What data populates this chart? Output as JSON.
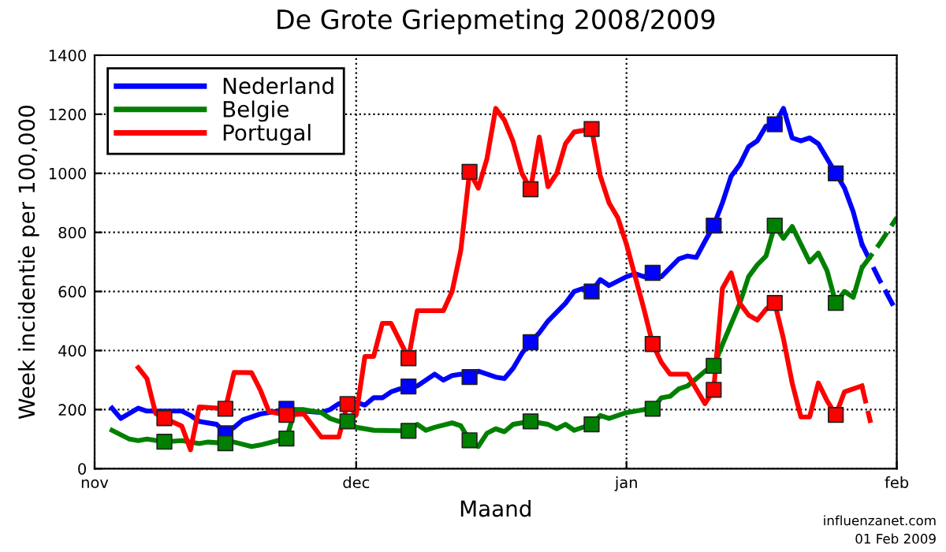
{
  "chart_data": {
    "type": "line",
    "title": "De Grote Griepmeting 2008/2009",
    "xlabel": "Maand",
    "ylabel": "Week incidentie per 100,000",
    "annotations": [
      "influenzanet.com",
      "01 Feb 2009"
    ],
    "xlim": [
      "2008-11-01",
      "2009-02-01"
    ],
    "xticks": [
      {
        "value": "2008-11-01",
        "label": "nov"
      },
      {
        "value": "2008-12-01",
        "label": "dec"
      },
      {
        "value": "2009-01-01",
        "label": "jan"
      },
      {
        "value": "2009-02-01",
        "label": "feb"
      }
    ],
    "ylim": [
      0,
      1400
    ],
    "yticks": [
      0,
      200,
      400,
      600,
      800,
      1000,
      1200,
      1400
    ],
    "grid": true,
    "legend": "top left",
    "series": [
      {
        "type": "line",
        "name": "Nederland",
        "color": "#0000ff",
        "line_style": "solid",
        "x": [
          "2008-11-03",
          "2008-11-04",
          "2008-11-06",
          "2008-11-07",
          "2008-11-09",
          "2008-11-11",
          "2008-11-12",
          "2008-11-13",
          "2008-11-15",
          "2008-11-16",
          "2008-11-17",
          "2008-11-18",
          "2008-11-20",
          "2008-11-22",
          "2008-11-23",
          "2008-11-25",
          "2008-11-27",
          "2008-11-28",
          "2008-11-29",
          "2008-11-30",
          "2008-12-01",
          "2008-12-02",
          "2008-12-03",
          "2008-12-04",
          "2008-12-05",
          "2008-12-06",
          "2008-12-07",
          "2008-12-08",
          "2008-12-09",
          "2008-12-10",
          "2008-12-11",
          "2008-12-12",
          "2008-12-13",
          "2008-12-14",
          "2008-12-15",
          "2008-12-16",
          "2008-12-17",
          "2008-12-18",
          "2008-12-19",
          "2008-12-20",
          "2008-12-21",
          "2008-12-22",
          "2008-12-23",
          "2008-12-24",
          "2008-12-25",
          "2008-12-26",
          "2008-12-27",
          "2008-12-28",
          "2008-12-29",
          "2008-12-30",
          "2009-01-01",
          "2009-01-02",
          "2009-01-03",
          "2009-01-04",
          "2009-01-05",
          "2009-01-06",
          "2009-01-07",
          "2009-01-08",
          "2009-01-09",
          "2009-01-10",
          "2009-01-11",
          "2009-01-12",
          "2009-01-13",
          "2009-01-14",
          "2009-01-15",
          "2009-01-16",
          "2009-01-17",
          "2009-01-18",
          "2009-01-19",
          "2009-01-20",
          "2009-01-21",
          "2009-01-22",
          "2009-01-23",
          "2009-01-24",
          "2009-01-25",
          "2009-01-26",
          "2009-01-27",
          "2009-01-28"
        ],
        "values": [
          205,
          170,
          205,
          195,
          195,
          195,
          180,
          160,
          150,
          120,
          140,
          165,
          185,
          195,
          203,
          195,
          190,
          200,
          220,
          225,
          225,
          215,
          240,
          240,
          260,
          270,
          278,
          280,
          300,
          320,
          300,
          315,
          320,
          310,
          330,
          320,
          310,
          305,
          340,
          390,
          428,
          460,
          500,
          530,
          560,
          600,
          610,
          600,
          640,
          620,
          650,
          660,
          650,
          663,
          650,
          680,
          710,
          720,
          715,
          770,
          823,
          900,
          990,
          1030,
          1090,
          1110,
          1160,
          1166,
          1220,
          1120,
          1110,
          1120,
          1100,
          1050,
          1000,
          950,
          870,
          760
        ]
      },
      {
        "type": "line",
        "color": "#0000ff",
        "line_style": "dashed",
        "x": [
          "2009-01-28",
          "2009-01-30",
          "2009-02-01"
        ],
        "values": [
          760,
          640,
          530
        ]
      },
      {
        "type": "line",
        "name": "Belgie",
        "color": "#008000",
        "line_style": "solid",
        "x": [
          "2008-11-03",
          "2008-11-05",
          "2008-11-06",
          "2008-11-07",
          "2008-11-09",
          "2008-11-11",
          "2008-11-13",
          "2008-11-14",
          "2008-11-16",
          "2008-11-17",
          "2008-11-19",
          "2008-11-20",
          "2008-11-22",
          "2008-11-23",
          "2008-11-24",
          "2008-11-25",
          "2008-11-27",
          "2008-11-28",
          "2008-11-29",
          "2008-11-30",
          "2008-12-01",
          "2008-12-03",
          "2008-12-07",
          "2008-12-08",
          "2008-12-09",
          "2008-12-10",
          "2008-12-12",
          "2008-12-13",
          "2008-12-14",
          "2008-12-15",
          "2008-12-16",
          "2008-12-17",
          "2008-12-18",
          "2008-12-19",
          "2008-12-21",
          "2008-12-23",
          "2008-12-24",
          "2008-12-25",
          "2008-12-26",
          "2008-12-28",
          "2008-12-29",
          "2008-12-30",
          "2009-01-01",
          "2009-01-03",
          "2009-01-04",
          "2009-01-05",
          "2009-01-06",
          "2009-01-07",
          "2009-01-08",
          "2009-01-09",
          "2009-01-10",
          "2009-01-11",
          "2009-01-12",
          "2009-01-13",
          "2009-01-14",
          "2009-01-15",
          "2009-01-16",
          "2009-01-17",
          "2009-01-18",
          "2009-01-19",
          "2009-01-20",
          "2009-01-21",
          "2009-01-22",
          "2009-01-23",
          "2009-01-24",
          "2009-01-25",
          "2009-01-26",
          "2009-01-27",
          "2009-01-28"
        ],
        "values": [
          130,
          100,
          95,
          100,
          91,
          95,
          85,
          90,
          86,
          90,
          75,
          80,
          95,
          102,
          200,
          200,
          190,
          170,
          160,
          160,
          140,
          130,
          128,
          150,
          130,
          140,
          155,
          145,
          96,
          75,
          120,
          135,
          125,
          150,
          160,
          150,
          135,
          150,
          130,
          150,
          180,
          170,
          190,
          200,
          203,
          240,
          245,
          270,
          280,
          305,
          330,
          348,
          420,
          490,
          560,
          650,
          690,
          720,
          823,
          780,
          820,
          760,
          700,
          730,
          670,
          561,
          600,
          580,
          680
        ]
      },
      {
        "type": "line",
        "color": "#008000",
        "line_style": "dashed",
        "x": [
          "2009-01-28",
          "2009-01-30",
          "2009-02-01"
        ],
        "values": [
          680,
          760,
          850
        ]
      },
      {
        "type": "line",
        "name": "Portugal",
        "color": "#ff0000",
        "line_style": "solid",
        "x": [
          "2008-11-06",
          "2008-11-07",
          "2008-11-08",
          "2008-11-09",
          "2008-11-11",
          "2008-11-12",
          "2008-11-13",
          "2008-11-16",
          "2008-11-17",
          "2008-11-19",
          "2008-11-20",
          "2008-11-21",
          "2008-11-23",
          "2008-11-25",
          "2008-11-27",
          "2008-11-29",
          "2008-11-30",
          "2008-12-01",
          "2008-12-02",
          "2008-12-03",
          "2008-12-04",
          "2008-12-05",
          "2008-12-07",
          "2008-12-08",
          "2008-12-11",
          "2008-12-12",
          "2008-12-13",
          "2008-12-14",
          "2008-12-15",
          "2008-12-16",
          "2008-12-17",
          "2008-12-18",
          "2008-12-19",
          "2008-12-20",
          "2008-12-21",
          "2008-12-22",
          "2008-12-23",
          "2008-12-24",
          "2008-12-25",
          "2008-12-26",
          "2008-12-28",
          "2008-12-29",
          "2008-12-30",
          "2008-12-31",
          "2009-01-01",
          "2009-01-02",
          "2009-01-03",
          "2009-01-04",
          "2009-01-05",
          "2009-01-06",
          "2009-01-08",
          "2009-01-09",
          "2009-01-10",
          "2009-01-11",
          "2009-01-12",
          "2009-01-13",
          "2009-01-14",
          "2009-01-15",
          "2009-01-16",
          "2009-01-17",
          "2009-01-18",
          "2009-01-19",
          "2009-01-20",
          "2009-01-21",
          "2009-01-22",
          "2009-01-23",
          "2009-01-24",
          "2009-01-25",
          "2009-01-26",
          "2009-01-27",
          "2009-01-28"
        ],
        "values": [
          342,
          305,
          187,
          171,
          144,
          64,
          209,
          203,
          326,
          325,
          267,
          193,
          182,
          185,
          107,
          107,
          219,
          182,
          380,
          380,
          492,
          492,
          374,
          535,
          535,
          600,
          740,
          1005,
          950,
          1050,
          1220,
          1180,
          1107,
          1000,
          946,
          1123,
          955,
          1000,
          1100,
          1140,
          1150,
          990,
          900,
          850,
          760,
          650,
          540,
          422,
          360,
          320,
          320,
          270,
          220,
          267,
          610,
          663,
          560,
          520,
          503,
          540,
          561,
          440,
          290,
          175,
          175,
          290,
          230,
          182,
          260,
          270,
          280
        ]
      },
      {
        "type": "line",
        "color": "#ff0000",
        "line_style": "dashed",
        "x": [
          "2009-01-28",
          "2009-01-29"
        ],
        "values": [
          280,
          155
        ]
      },
      {
        "type": "scatter",
        "color": "#0000ff",
        "marker": "square",
        "x": [
          "2008-11-16",
          "2008-11-23",
          "2008-12-07",
          "2008-12-14",
          "2008-12-21",
          "2008-12-28",
          "2009-01-04",
          "2009-01-11",
          "2009-01-18",
          "2009-01-25"
        ],
        "values": [
          120,
          203,
          278,
          310,
          428,
          600,
          663,
          823,
          1166,
          1000
        ]
      },
      {
        "type": "scatter",
        "color": "#008000",
        "marker": "square",
        "x": [
          "2008-11-09",
          "2008-11-16",
          "2008-11-23",
          "2008-11-30",
          "2008-12-07",
          "2008-12-14",
          "2008-12-21",
          "2008-12-28",
          "2009-01-04",
          "2009-01-11",
          "2009-01-18",
          "2009-01-25"
        ],
        "values": [
          91,
          86,
          102,
          160,
          128,
          96,
          160,
          150,
          203,
          348,
          823,
          561
        ]
      },
      {
        "type": "scatter",
        "color": "#ff0000",
        "marker": "square",
        "x": [
          "2008-11-09",
          "2008-11-16",
          "2008-11-23",
          "2008-11-30",
          "2008-12-07",
          "2008-12-14",
          "2008-12-21",
          "2008-12-28",
          "2009-01-04",
          "2009-01-11",
          "2009-01-18",
          "2009-01-25"
        ],
        "values": [
          171,
          203,
          182,
          219,
          374,
          1005,
          946,
          1150,
          422,
          267,
          561,
          182
        ]
      }
    ]
  }
}
